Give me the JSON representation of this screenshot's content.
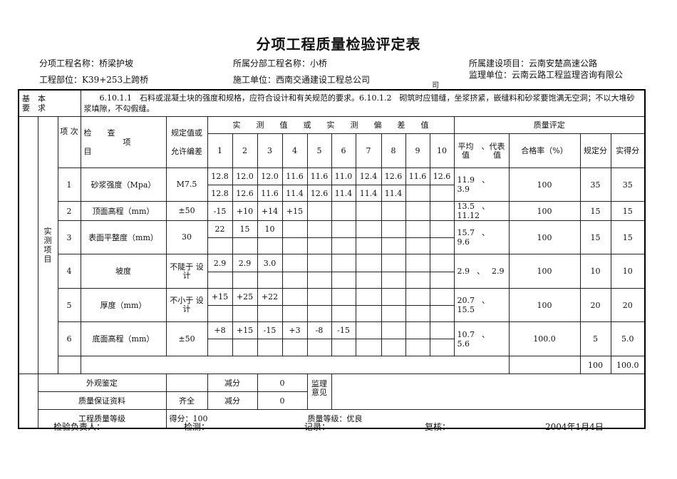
{
  "title": "分项工程质量检验评定表",
  "info": {
    "sub_project": "分项工程名称：桥梁护坡",
    "division": "所属分部工程名称：小桥",
    "construction_project": "所属建设项目：云南安楚高速公路",
    "location": "工程部位：K39+253上跨桥",
    "contractor": "施工单位：西南交通建设工程总公司",
    "overflow_char": "司",
    "supervisor": "监理单位：云南云路工程监理咨询有限公"
  },
  "basic_req": {
    "label": "基　本\n要　求",
    "text": "　　6.10.1.1　石料或混凝土块的强度和规格，应符合设计和有关规范的要求。6.10.1.2　砌筑时应错缝，坐浆挤紧，嵌缝料和砂浆要饱满无空洞；不以大堆砂浆填隙，不勾假缝。"
  },
  "headers": {
    "measured_items": "实\n\n测\n项\n\n目",
    "item_no": "项\n次",
    "check_item": "检　　查\n　　　　　项\n目",
    "spec": "规定值或\n\n允许编差",
    "measured_values": "实　　测　　值　　或　　实　　测　　偏　　差　　值",
    "quality_eval": "质量评定",
    "points": [
      "1",
      "2",
      "3",
      "4",
      "5",
      "6",
      "7",
      "8",
      "9",
      "10"
    ],
    "avg_rep": "平均　、代表\n值　　　值",
    "pass_rate": "合格率（%）",
    "specified_score": "规定分",
    "actual_score": "实得分"
  },
  "items": [
    {
      "no": "1",
      "name": "砂浆强度（Mpa）",
      "spec": "M7.5",
      "row1": [
        "12.8",
        "12.0",
        "12.0",
        "11.6",
        "11.6",
        "11.0",
        "12.4",
        "12.6",
        "11.6",
        "12.6"
      ],
      "row2": [
        "12.8",
        "12.6",
        "11.6",
        "11.4",
        "12.6",
        "11.4",
        "11.4",
        "11.4",
        "",
        ""
      ],
      "avg": "11.9",
      "rep": "3.9",
      "pass_rate": "100",
      "specified": "35",
      "actual": "35"
    },
    {
      "no": "2",
      "name": "顶面高程（mm）",
      "spec": "±50",
      "row1": [
        "-15",
        "+10",
        "+14",
        "+15",
        "",
        "",
        "",
        "",
        "",
        ""
      ],
      "avg": "13.5",
      "rep": "11.12",
      "pass_rate": "100",
      "specified": "15",
      "actual": "15"
    },
    {
      "no": "3",
      "name": "表面平整度（mm）",
      "spec": "30",
      "row1": [
        "22",
        "15",
        "10",
        "",
        "",
        "",
        "",
        "",
        "",
        ""
      ],
      "row2": [
        "",
        "",
        "",
        "",
        "",
        "",
        "",
        "",
        "",
        ""
      ],
      "avg": "15.7",
      "rep": "9.6",
      "pass_rate": "100",
      "specified": "15",
      "actual": "15"
    },
    {
      "no": "4",
      "name": "坡度",
      "spec": "不陡于\n设计",
      "row1": [
        "2.9",
        "2.9",
        "3.0",
        "",
        "",
        "",
        "",
        "",
        "",
        ""
      ],
      "row2": [
        "",
        "",
        "",
        "",
        "",
        "",
        "",
        "",
        "",
        ""
      ],
      "avg": "2.9",
      "rep": "2.9",
      "pass_rate": "100",
      "specified": "10",
      "actual": "10"
    },
    {
      "no": "5",
      "name": "厚度（mm）",
      "spec": "不小于\n设计",
      "row1": [
        "+15",
        "+25",
        "+22",
        "",
        "",
        "",
        "",
        "",
        "",
        ""
      ],
      "row2": [
        "",
        "",
        "",
        "",
        "",
        "",
        "",
        "",
        "",
        ""
      ],
      "avg": "20.7",
      "rep": "15.5",
      "pass_rate": "100",
      "specified": "20",
      "actual": "20"
    },
    {
      "no": "6",
      "name": "底面高程（mm）",
      "spec": "±50",
      "row1": [
        "+8",
        "+15",
        "-15",
        "+3",
        "-8",
        "-15",
        "",
        "",
        "",
        ""
      ],
      "row2": [
        "",
        "",
        "",
        "",
        "",
        "",
        "",
        "",
        "",
        ""
      ],
      "avg": "10.7",
      "rep": "5.6",
      "pass_rate": "100.0",
      "specified": "5",
      "actual": "5.0"
    }
  ],
  "separator": "、",
  "totals": {
    "specified": "100",
    "actual": "100.0"
  },
  "appearance": {
    "label": "外观鉴定",
    "value": "",
    "deduct_label": "减分",
    "deduct": "0"
  },
  "quality_docs": {
    "label": "质量保证资料",
    "value": "齐全",
    "deduct_label": "减分",
    "deduct": "0"
  },
  "supervisor_opinion": {
    "label": "监理\n意见",
    "value": ""
  },
  "grade": {
    "label": "工程质量等级",
    "score": "得分：100",
    "level": "质量等级：优良"
  },
  "footer": {
    "inspector": "检验负责人：",
    "tester": "检测：",
    "recorder": "记录：",
    "reviewer": "复核：",
    "date": "2004年1月4日"
  }
}
